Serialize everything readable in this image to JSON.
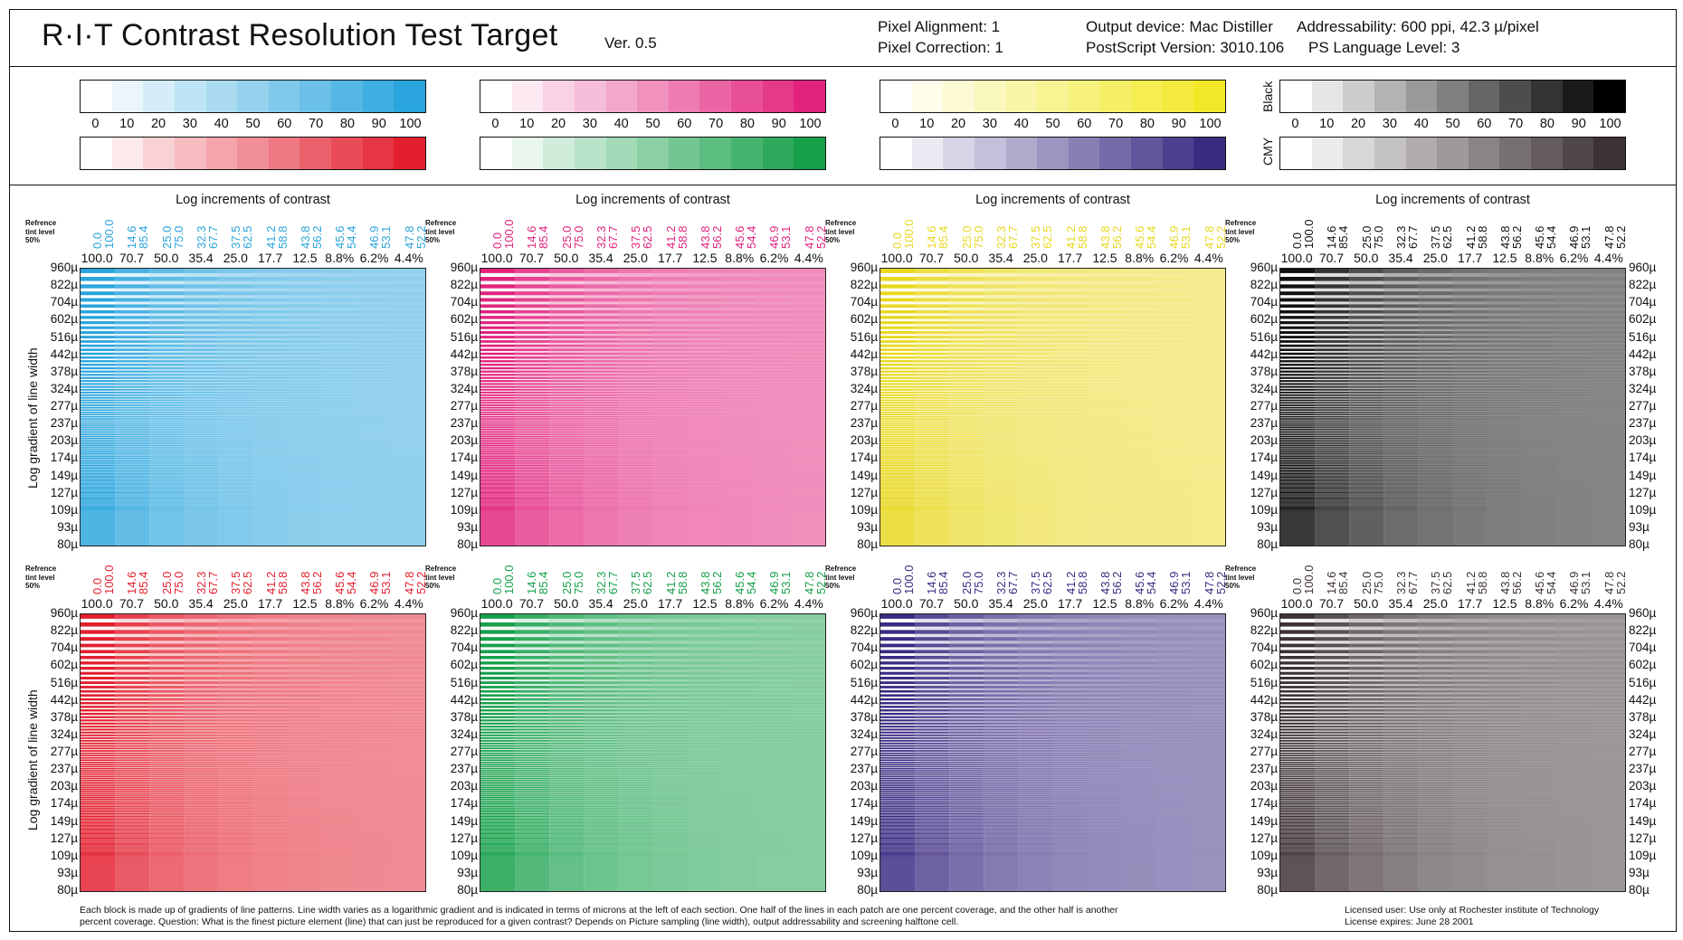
{
  "header": {
    "title": "R·I·T  Contrast Resolution  Test Target",
    "version": "Ver. 0.5",
    "pixel_alignment": "Pixel Alignment: 1",
    "pixel_correction": "Pixel Correction:  1",
    "output_device": "Output device: Mac Distiller",
    "postscript_version": "PostScript Version: 3010.106",
    "addressability": "Addressability: 600 ppi, 42.3 µ/pixel",
    "ps_language_level": "PS Language Level: 3"
  },
  "swatch_labels": [
    "0",
    "10",
    "20",
    "30",
    "40",
    "50",
    "60",
    "70",
    "80",
    "90",
    "100"
  ],
  "swatch_side_labels": {
    "black": "Black",
    "cmy": "CMY"
  },
  "swatches": {
    "cyan": "#2aa5dd",
    "magenta": "#e2237d",
    "yellow": "#f2e827",
    "black": "#000000",
    "red": "#e31f2e",
    "green": "#16a04a",
    "violet": "#3b2a82",
    "cmy": "#3d3236"
  },
  "sections": {
    "heading": "Log increments of contrast",
    "reference_label": "Refrence tint level 50%",
    "tint_pairs": [
      [
        "0.0",
        "100.0"
      ],
      [
        "14.6",
        "85.4"
      ],
      [
        "25.0",
        "75.0"
      ],
      [
        "32.3",
        "67.7"
      ],
      [
        "37.5",
        "62.5"
      ],
      [
        "41.2",
        "58.8"
      ],
      [
        "43.8",
        "56.2"
      ],
      [
        "45.6",
        "54.4"
      ],
      [
        "46.9",
        "53.1"
      ],
      [
        "47.8",
        "52.2"
      ]
    ],
    "contrast_percents": [
      "100.0",
      "70.7",
      "50.0",
      "35.4",
      "25.0",
      "17.7",
      "12.5",
      "8.8%",
      "6.2%",
      "4.4%"
    ],
    "line_widths": [
      "960µ",
      "822µ",
      "704µ",
      "602µ",
      "516µ",
      "442µ",
      "378µ",
      "324µ",
      "277µ",
      "237µ",
      "203µ",
      "174µ",
      "149µ",
      "127µ",
      "109µ",
      "93µ",
      "80µ"
    ],
    "y_axis_title": "Log gradient of line width",
    "tint_colors": {
      "cyan": "#2aa5dd",
      "magenta": "#e2237d",
      "yellow": "#e8d820",
      "black": "#111111",
      "red": "#e31f2e",
      "green": "#16a04a",
      "violet": "#3b2a82",
      "cmy": "#3d3236"
    }
  },
  "footer": {
    "description": "Each block is made up of gradients of line patterns. Line width varies as a  logarithmic gradient and is indicated in terms of microns at the left of each section. One half of the lines in each patch are one percent coverage, and the other half is another percent coverage. Question: What is the finest picture element (line) that can just be reproduced  for a given contrast? Depends on Picture sampling (line width), output addressability and screening halftone cell.",
    "license_user": "Licensed user: Use only at Rochester institute of Technology",
    "license_expires": "License expires: June 28 2001"
  }
}
